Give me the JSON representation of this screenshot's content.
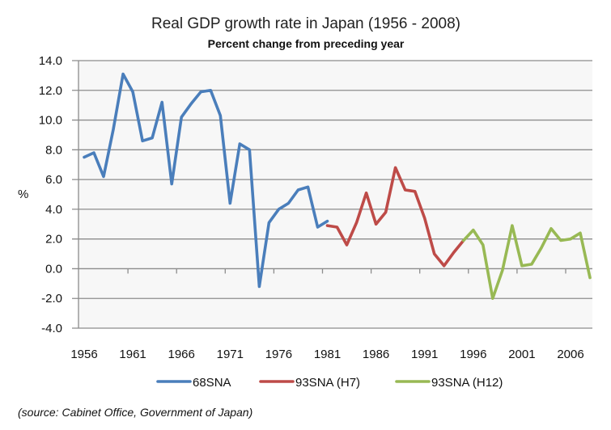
{
  "chart_data": {
    "type": "line",
    "title": "Real GDP growth rate in Japan (1956 - 2008)",
    "subtitle": "Percent change from preceding year",
    "xlabel": "",
    "ylabel": "%",
    "ylim": [
      -4,
      14
    ],
    "yticks": [
      "14.0",
      "12.0",
      "10.0",
      "8.0",
      "6.0",
      "4.0",
      "2.0",
      "0.0",
      "-2.0",
      "-4.0"
    ],
    "ytick_values": [
      14,
      12,
      10,
      8,
      6,
      4,
      2,
      0,
      -2,
      -4
    ],
    "negative_tick_color": "#ff0000",
    "xticks": [
      "1956",
      "1961",
      "1966",
      "1971",
      "1976",
      "1981",
      "1986",
      "1991",
      "1996",
      "2001",
      "2006"
    ],
    "xlim": [
      1956,
      2008
    ],
    "grid": "horizontal",
    "legend": "bottom",
    "series": [
      {
        "name": "68SNA",
        "color": "#4a7ebb",
        "start_year": 1956,
        "values": [
          7.5,
          7.8,
          6.2,
          9.4,
          13.1,
          11.9,
          8.6,
          8.8,
          11.2,
          5.7,
          10.2,
          11.1,
          11.9,
          12.0,
          10.3,
          4.4,
          8.4,
          8.0,
          -1.2,
          3.1,
          4.0,
          4.4,
          5.3,
          5.5,
          2.8,
          3.2
        ]
      },
      {
        "name": "93SNA (H7)",
        "color": "#be4b48",
        "start_year": 1981,
        "values": [
          2.9,
          2.8,
          1.6,
          3.1,
          5.1,
          3.0,
          3.8,
          6.8,
          5.3,
          5.2,
          3.4,
          1.0,
          0.2,
          1.1,
          1.9
        ]
      },
      {
        "name": "93SNA (H12)",
        "color": "#98b954",
        "start_year": 1995,
        "values": [
          1.9,
          2.6,
          1.6,
          -2.0,
          -0.1,
          2.9,
          0.2,
          0.3,
          1.4,
          2.7,
          1.9,
          2.0,
          2.4,
          -0.6
        ]
      }
    ]
  },
  "source_note": "(source:  Cabinet Office, Government of Japan)"
}
